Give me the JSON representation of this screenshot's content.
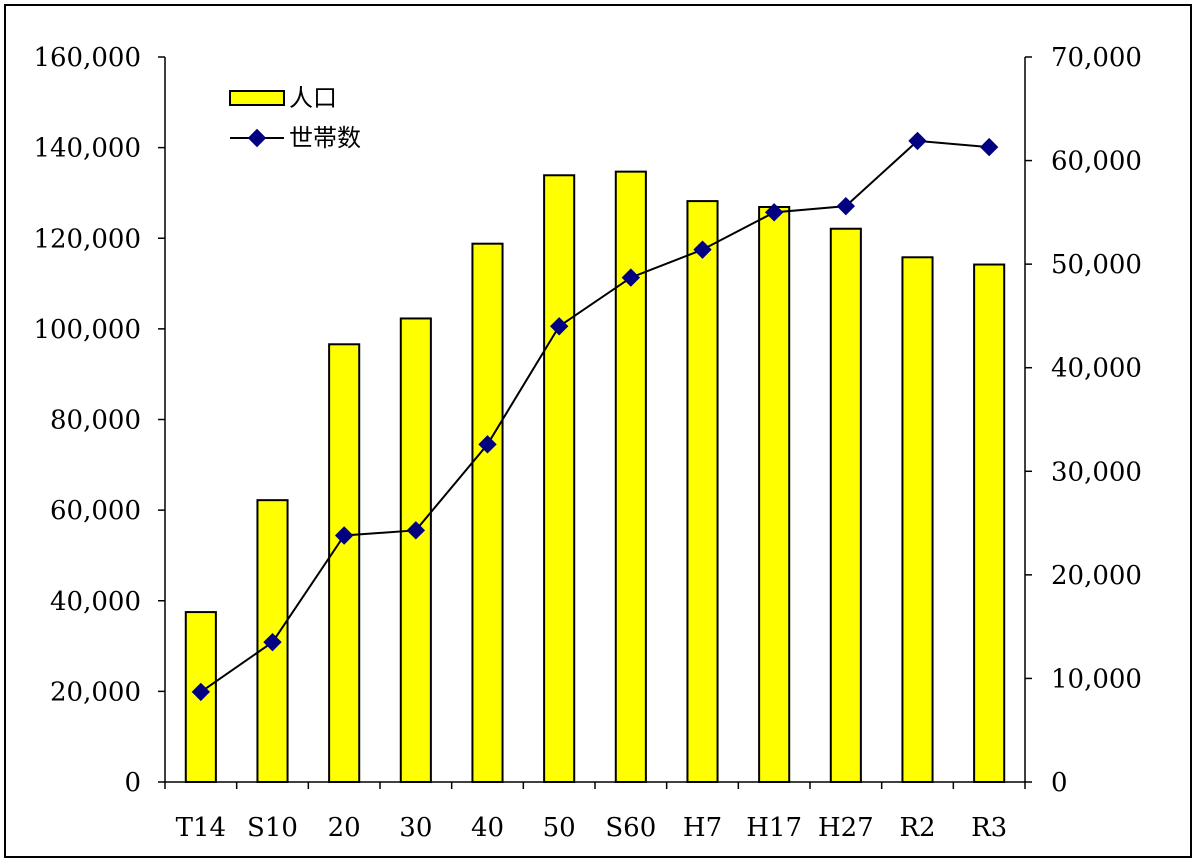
{
  "chart_data": {
    "type": "bar",
    "categories": [
      "T14",
      "S10",
      "20",
      "30",
      "40",
      "50",
      "S60",
      "H7",
      "H17",
      "H27",
      "R2",
      "R3"
    ],
    "series": [
      {
        "name": "人口",
        "type": "bar",
        "axis": "left",
        "color": "#ffff00",
        "values": [
          37500,
          62200,
          96600,
          102300,
          118800,
          133900,
          134700,
          128200,
          126900,
          122100,
          115800,
          114200
        ]
      },
      {
        "name": "世帯数",
        "type": "line",
        "axis": "right",
        "color": "#000000",
        "marker_color": "#000080",
        "values": [
          8700,
          13500,
          23800,
          24300,
          32600,
          44000,
          48700,
          51400,
          55000,
          55600,
          61900,
          61300
        ]
      }
    ],
    "y_left": {
      "ylim": [
        0,
        160000
      ],
      "ticks": [
        "0",
        "20,000",
        "40,000",
        "60,000",
        "80,000",
        "100,000",
        "120,000",
        "140,000",
        "160,000"
      ]
    },
    "y_right": {
      "ylim": [
        0,
        70000
      ],
      "ticks": [
        "0",
        "10,000",
        "20,000",
        "30,000",
        "40,000",
        "50,000",
        "60,000",
        "70,000"
      ]
    },
    "legend_position": "top-left",
    "grid": false
  }
}
